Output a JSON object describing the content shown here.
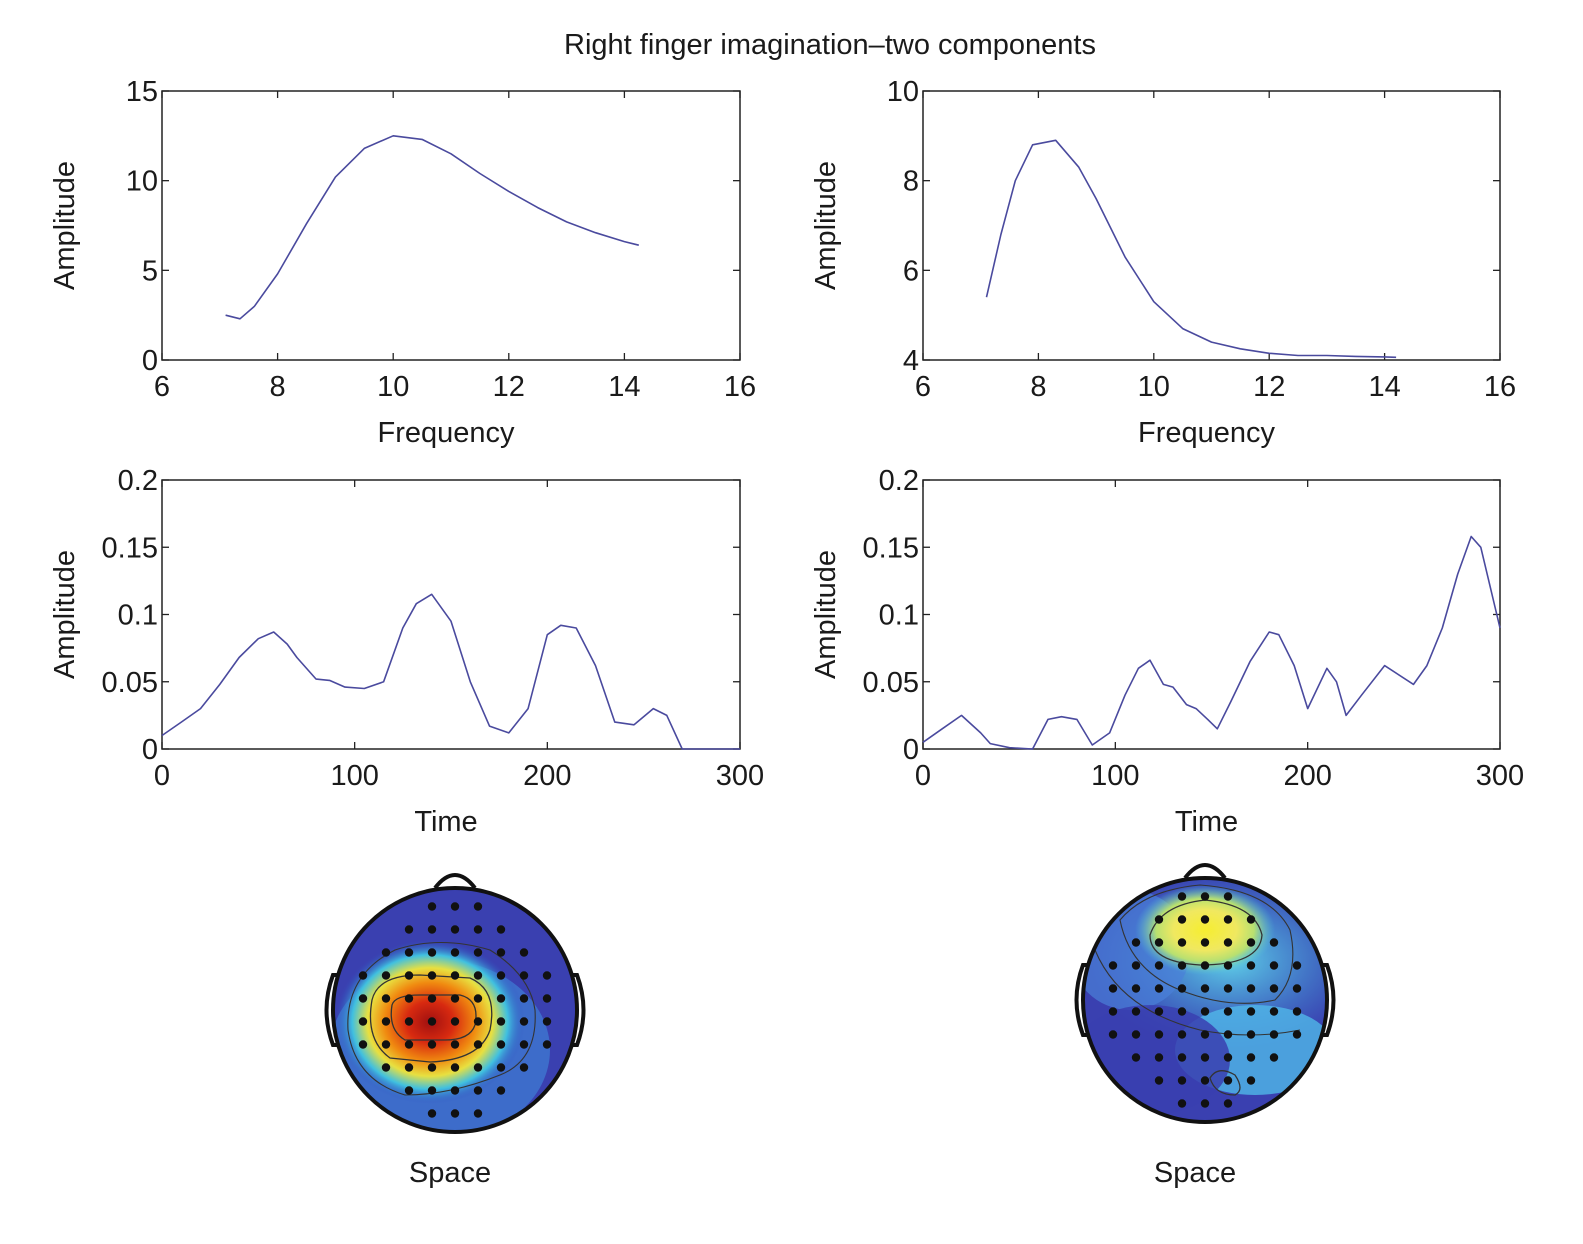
{
  "figure_title": "Right finger imagination–two components",
  "colors": {
    "line": "#4a4a9e",
    "axis": "#222222",
    "electrode": "#111111"
  },
  "chart_data": [
    {
      "type": "line",
      "id": "freq1",
      "xlabel": "Frequency",
      "ylabel": "Amplitude",
      "xlim": [
        6,
        16
      ],
      "ylim": [
        0,
        15
      ],
      "xticks": [
        6,
        8,
        10,
        12,
        14,
        16
      ],
      "yticks": [
        0,
        5,
        10,
        15
      ],
      "x": [
        7.1,
        7.35,
        7.6,
        8.0,
        8.5,
        9.0,
        9.5,
        10.0,
        10.5,
        11.0,
        11.5,
        12.0,
        12.5,
        13.0,
        13.5,
        14.0,
        14.25
      ],
      "y": [
        2.5,
        2.3,
        3.0,
        4.8,
        7.6,
        10.2,
        11.8,
        12.5,
        12.3,
        11.5,
        10.4,
        9.4,
        8.5,
        7.7,
        7.1,
        6.6,
        6.4
      ]
    },
    {
      "type": "line",
      "id": "freq2",
      "xlabel": "Frequency",
      "ylabel": "Amplitude",
      "xlim": [
        6,
        16
      ],
      "ylim": [
        4,
        10
      ],
      "xticks": [
        6,
        8,
        10,
        12,
        14,
        16
      ],
      "yticks": [
        4,
        6,
        8,
        10
      ],
      "x": [
        7.1,
        7.35,
        7.6,
        7.9,
        8.3,
        8.7,
        9.0,
        9.5,
        10.0,
        10.5,
        11.0,
        11.5,
        12.0,
        12.5,
        13.0,
        13.5,
        14.0,
        14.2
      ],
      "y": [
        5.4,
        6.8,
        8.0,
        8.8,
        8.9,
        8.3,
        7.6,
        6.3,
        5.3,
        4.7,
        4.4,
        4.25,
        4.15,
        4.1,
        4.1,
        4.08,
        4.07,
        4.06
      ]
    },
    {
      "type": "line",
      "id": "time1",
      "xlabel": "Time",
      "ylabel": "Amplitude",
      "xlim": [
        0,
        300
      ],
      "ylim": [
        0,
        0.2
      ],
      "xticks": [
        0,
        100,
        200,
        300
      ],
      "yticks": [
        0,
        0.05,
        0.1,
        0.15,
        0.2
      ],
      "x": [
        0,
        10,
        20,
        30,
        40,
        50,
        58,
        65,
        70,
        80,
        87,
        95,
        105,
        115,
        125,
        132,
        140,
        150,
        160,
        170,
        180,
        190,
        200,
        207,
        215,
        225,
        235,
        245,
        255,
        262,
        270,
        300
      ],
      "y": [
        0.01,
        0.02,
        0.03,
        0.048,
        0.068,
        0.082,
        0.087,
        0.078,
        0.068,
        0.052,
        0.051,
        0.046,
        0.045,
        0.05,
        0.09,
        0.108,
        0.115,
        0.095,
        0.05,
        0.017,
        0.012,
        0.03,
        0.085,
        0.092,
        0.09,
        0.062,
        0.02,
        0.018,
        0.03,
        0.025,
        0,
        0
      ]
    },
    {
      "type": "line",
      "id": "time2",
      "xlabel": "Time",
      "ylabel": "Amplitude",
      "xlim": [
        0,
        300
      ],
      "ylim": [
        0,
        0.2
      ],
      "xticks": [
        0,
        100,
        200,
        300
      ],
      "yticks": [
        0,
        0.05,
        0.1,
        0.15,
        0.2
      ],
      "x": [
        0,
        10,
        20,
        30,
        35,
        45,
        57,
        65,
        72,
        80,
        88,
        97,
        105,
        112,
        118,
        125,
        130,
        137,
        142,
        148,
        153,
        160,
        170,
        180,
        185,
        193,
        200,
        210,
        215,
        220,
        228,
        240,
        255,
        262,
        270,
        278,
        285,
        290,
        300
      ],
      "y": [
        0.005,
        0.015,
        0.025,
        0.012,
        0.004,
        0.001,
        0,
        0.022,
        0.024,
        0.022,
        0.003,
        0.012,
        0.04,
        0.06,
        0.066,
        0.048,
        0.046,
        0.033,
        0.03,
        0.022,
        0.015,
        0.035,
        0.065,
        0.087,
        0.085,
        0.062,
        0.03,
        0.06,
        0.05,
        0.025,
        0.04,
        0.062,
        0.048,
        0.062,
        0.09,
        0.13,
        0.158,
        0.15,
        0.09
      ]
    }
  ],
  "topomaps": [
    {
      "id": "topo1",
      "label": "Space"
    },
    {
      "id": "topo2",
      "label": "Space"
    }
  ]
}
